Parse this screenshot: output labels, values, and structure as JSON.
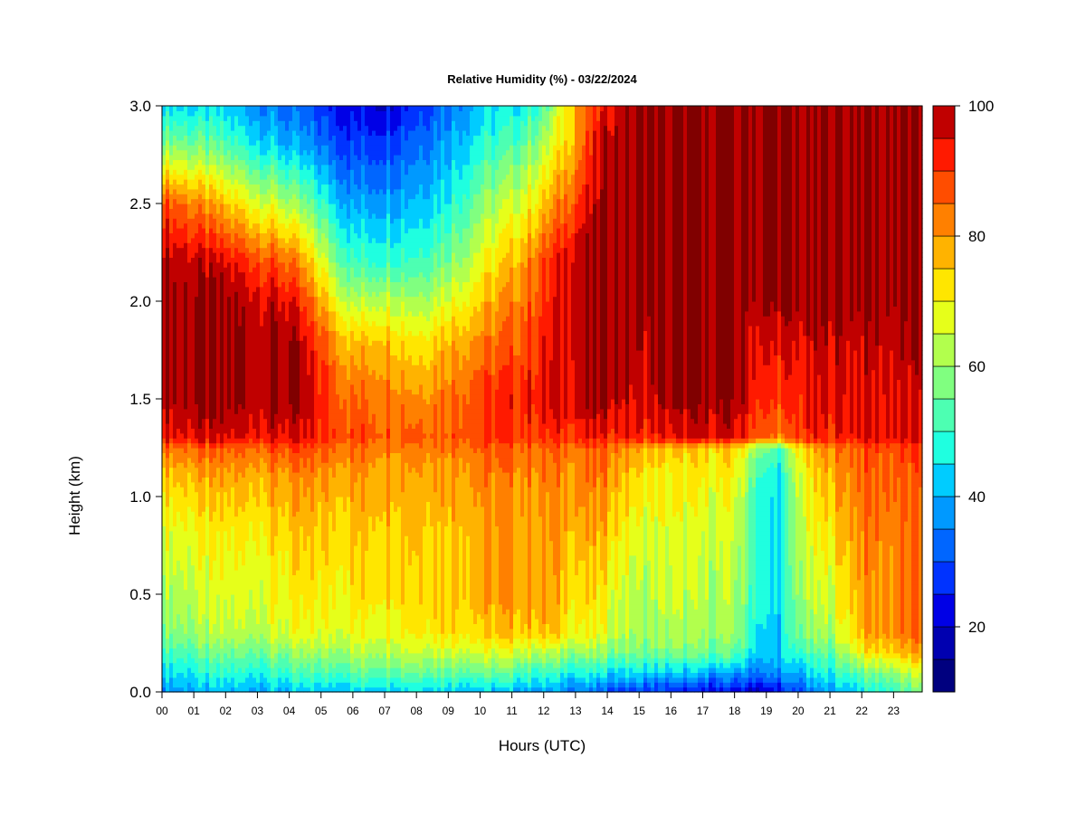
{
  "chart_data": {
    "type": "heatmap",
    "title": "Relative Humidity (%) - 03/22/2024",
    "xlabel": "Hours (UTC)",
    "ylabel": "Height (km)",
    "xlim": [
      0,
      23.9
    ],
    "ylim": [
      0.0,
      3.0
    ],
    "x_ticks": [
      0,
      1,
      2,
      3,
      4,
      5,
      6,
      7,
      8,
      9,
      10,
      11,
      12,
      13,
      14,
      15,
      16,
      17,
      18,
      19,
      20,
      21,
      22,
      23
    ],
    "x_tick_labels": [
      "00",
      "01",
      "02",
      "03",
      "04",
      "05",
      "06",
      "07",
      "08",
      "09",
      "10",
      "11",
      "12",
      "13",
      "14",
      "15",
      "16",
      "17",
      "18",
      "19",
      "20",
      "21",
      "22",
      "23"
    ],
    "y_ticks": [
      0.0,
      0.5,
      1.0,
      1.5,
      2.0,
      2.5,
      3.0
    ],
    "y_tick_labels": [
      "0.0",
      "0.5",
      "1.0",
      "1.5",
      "2.0",
      "2.5",
      "3.0"
    ],
    "colorbar": {
      "levels": [
        10,
        15,
        20,
        25,
        30,
        35,
        40,
        45,
        50,
        55,
        60,
        65,
        70,
        75,
        80,
        85,
        90,
        95,
        100
      ],
      "colors": [
        "#00007F",
        "#0000B0",
        "#0000E6",
        "#0033FF",
        "#0066FF",
        "#0099FF",
        "#00CCFF",
        "#1FFFE0",
        "#4DFFB2",
        "#80FF80",
        "#B2FF4D",
        "#E6FF1A",
        "#FFE600",
        "#FFB300",
        "#FF8000",
        "#FF4D00",
        "#FF1A00",
        "#C00000",
        "#800000"
      ],
      "tick_values": [
        20,
        40,
        60,
        80,
        100
      ],
      "tick_labels": [
        "20",
        "40",
        "60",
        "80",
        "100"
      ]
    },
    "height_profile_km": [
      0.0,
      0.1,
      0.2,
      0.3,
      0.5,
      0.7,
      0.9,
      1.1,
      1.25,
      1.3,
      1.5,
      1.8,
      2.0,
      2.2,
      2.5,
      2.8,
      3.0
    ],
    "hour_profiles": [
      {
        "hour": 0,
        "rh": [
          38,
          45,
          52,
          58,
          62,
          66,
          70,
          76,
          85,
          95,
          100,
          100,
          100,
          100,
          90,
          60,
          45
        ]
      },
      {
        "hour": 2,
        "rh": [
          40,
          48,
          55,
          62,
          66,
          68,
          72,
          78,
          85,
          95,
          100,
          100,
          100,
          95,
          75,
          52,
          42
        ]
      },
      {
        "hour": 4,
        "rh": [
          40,
          50,
          58,
          66,
          70,
          72,
          76,
          80,
          88,
          95,
          100,
          100,
          95,
          85,
          62,
          40,
          32
        ]
      },
      {
        "hour": 6,
        "rh": [
          42,
          54,
          62,
          68,
          72,
          74,
          76,
          80,
          85,
          88,
          85,
          75,
          62,
          50,
          38,
          28,
          22
        ]
      },
      {
        "hour": 7,
        "rh": [
          44,
          56,
          64,
          70,
          74,
          76,
          78,
          80,
          84,
          88,
          86,
          78,
          66,
          52,
          40,
          30,
          22
        ]
      },
      {
        "hour": 8,
        "rh": [
          45,
          57,
          66,
          72,
          76,
          76,
          78,
          80,
          85,
          88,
          82,
          72,
          62,
          52,
          42,
          34,
          28
        ]
      },
      {
        "hour": 9,
        "rh": [
          44,
          56,
          66,
          74,
          76,
          76,
          78,
          80,
          84,
          88,
          85,
          78,
          68,
          58,
          48,
          40,
          35
        ]
      },
      {
        "hour": 10,
        "rh": [
          42,
          55,
          66,
          74,
          78,
          78,
          80,
          82,
          86,
          90,
          90,
          82,
          75,
          68,
          58,
          48,
          42
        ]
      },
      {
        "hour": 11,
        "rh": [
          40,
          54,
          66,
          76,
          80,
          80,
          80,
          82,
          86,
          90,
          92,
          86,
          82,
          76,
          65,
          52,
          45
        ]
      },
      {
        "hour": 12,
        "rh": [
          38,
          50,
          62,
          76,
          80,
          80,
          80,
          82,
          85,
          90,
          95,
          92,
          90,
          88,
          75,
          62,
          52
        ]
      },
      {
        "hour": 13,
        "rh": [
          35,
          48,
          60,
          70,
          74,
          76,
          80,
          82,
          85,
          92,
          98,
          100,
          100,
          100,
          90,
          80,
          80
        ]
      },
      {
        "hour": 14,
        "rh": [
          30,
          45,
          58,
          66,
          70,
          74,
          78,
          82,
          86,
          92,
          100,
          100,
          100,
          100,
          100,
          100,
          95
        ]
      },
      {
        "hour": 15,
        "rh": [
          28,
          44,
          56,
          60,
          62,
          64,
          68,
          72,
          78,
          92,
          95,
          98,
          100,
          100,
          100,
          100,
          100
        ]
      },
      {
        "hour": 16,
        "rh": [
          25,
          42,
          56,
          62,
          64,
          66,
          68,
          70,
          74,
          92,
          100,
          100,
          100,
          100,
          100,
          100,
          100
        ]
      },
      {
        "hour": 17,
        "rh": [
          22,
          40,
          55,
          60,
          62,
          64,
          66,
          70,
          74,
          95,
          100,
          100,
          100,
          100,
          100,
          100,
          100
        ]
      },
      {
        "hour": 18,
        "rh": [
          22,
          38,
          54,
          60,
          62,
          64,
          66,
          70,
          74,
          95,
          100,
          100,
          100,
          100,
          100,
          100,
          100
        ]
      },
      {
        "hour": 19,
        "rh": [
          18,
          35,
          40,
          42,
          44,
          44,
          44,
          46,
          54,
          85,
          90,
          95,
          100,
          100,
          100,
          100,
          100
        ]
      },
      {
        "hour": 19.5,
        "rh": [
          25,
          38,
          44,
          44,
          44,
          44,
          44,
          46,
          52,
          82,
          90,
          95,
          100,
          100,
          100,
          100,
          100
        ]
      },
      {
        "hour": 20,
        "rh": [
          30,
          40,
          50,
          56,
          60,
          62,
          64,
          66,
          72,
          90,
          92,
          95,
          100,
          100,
          100,
          100,
          100
        ]
      },
      {
        "hour": 21,
        "rh": [
          38,
          48,
          54,
          62,
          66,
          70,
          74,
          78,
          82,
          92,
          95,
          98,
          100,
          100,
          100,
          100,
          100
        ]
      },
      {
        "hour": 22,
        "rh": [
          45,
          55,
          70,
          78,
          80,
          82,
          84,
          86,
          88,
          95,
          95,
          98,
          100,
          100,
          100,
          100,
          100
        ]
      },
      {
        "hour": 23,
        "rh": [
          50,
          60,
          75,
          82,
          82,
          82,
          84,
          86,
          88,
          95,
          95,
          98,
          100,
          100,
          100,
          100,
          100
        ]
      },
      {
        "hour": 23.9,
        "rh": [
          55,
          65,
          78,
          84,
          84,
          84,
          84,
          86,
          88,
          95,
          95,
          98,
          100,
          100,
          100,
          100,
          100
        ]
      }
    ]
  }
}
